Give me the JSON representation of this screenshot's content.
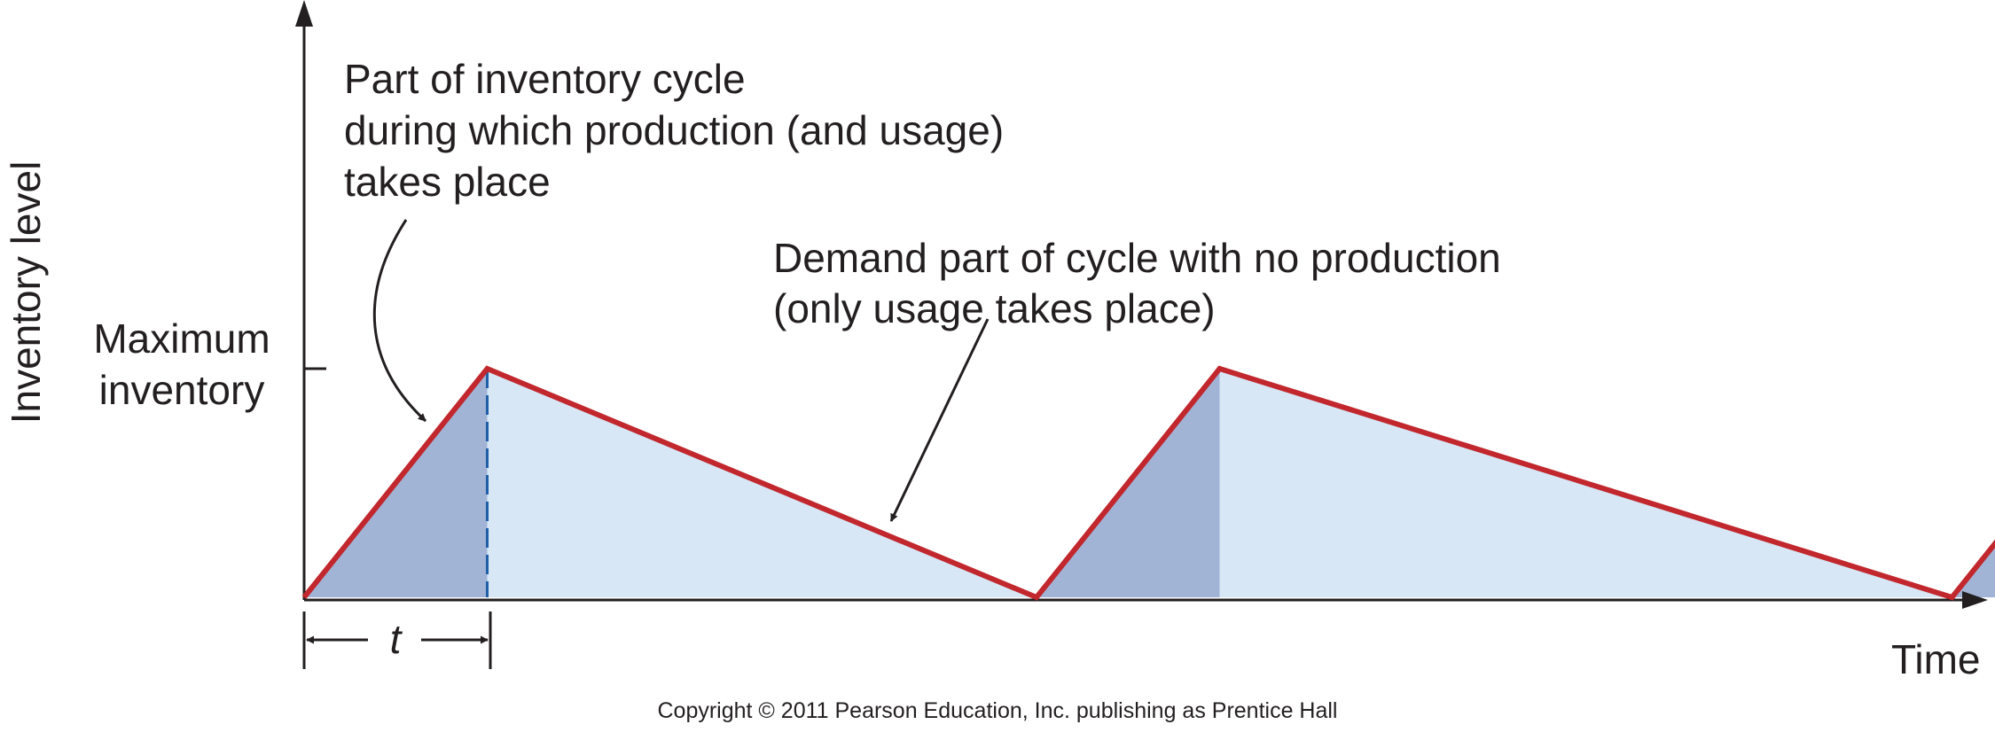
{
  "chart_data": {
    "type": "line",
    "title": "",
    "xlabel": "Time",
    "ylabel": "Inventory level",
    "y_tick_label": "Maximum inventory",
    "y_tick_lines": [
      "Maximum",
      "inventory"
    ],
    "interval_label": "t",
    "xlim": [
      0,
      9
    ],
    "ylim": [
      0,
      1
    ],
    "series": [
      {
        "x": [
          0,
          1,
          4,
          5,
          9,
          10
        ],
        "y": [
          0,
          1,
          0,
          1,
          0,
          1
        ]
      }
    ],
    "production_periods": [
      [
        0,
        1
      ],
      [
        4,
        5
      ],
      [
        9,
        10
      ]
    ],
    "usage_periods": [
      [
        1,
        4
      ],
      [
        5,
        9
      ]
    ],
    "annotations": {
      "production": {
        "lines": [
          "Part of inventory cycle",
          "during which production (and usage)",
          "takes place"
        ]
      },
      "demand": {
        "lines": [
          "Demand part of cycle with no production",
          "(only usage takes place)"
        ]
      }
    },
    "copyright": "Copyright © 2011 Pearson Education, Inc. publishing as Prentice Hall",
    "colors": {
      "line": "#c1272d",
      "production_fill": "#a2b4d6",
      "usage_fill": "#d7e7f6",
      "axis": "#231f20",
      "dashed_marker": "#1f5fa8"
    }
  }
}
